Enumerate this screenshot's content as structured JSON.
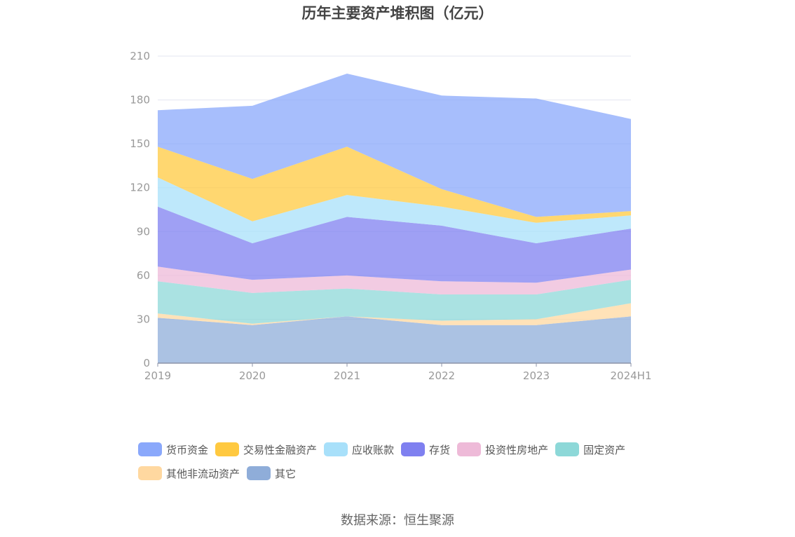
{
  "chart_data": {
    "type": "area",
    "stacked": true,
    "title": "历年主要资产堆积图（亿元）",
    "categories": [
      "2019",
      "2020",
      "2021",
      "2022",
      "2023",
      "2024H1"
    ],
    "y_ticks": [
      "0",
      "30",
      "60",
      "90",
      "120",
      "150",
      "180",
      "210"
    ],
    "ylim": [
      0,
      210
    ],
    "grid": true,
    "legend_position": "bottom",
    "series": [
      {
        "name": "其它",
        "color": "#8fadd9",
        "values": [
          31,
          26,
          32,
          26,
          26,
          32
        ]
      },
      {
        "name": "其他非流动资产",
        "color": "#ffd8a0",
        "values": [
          3,
          1,
          0,
          3,
          4,
          9
        ]
      },
      {
        "name": "固定资产",
        "color": "#8dd8d8",
        "values": [
          22,
          21,
          19,
          18,
          17,
          16
        ]
      },
      {
        "name": "投资性房地产",
        "color": "#eebad8",
        "values": [
          10,
          9,
          9,
          9,
          8,
          7
        ]
      },
      {
        "name": "存货",
        "color": "#7f80f0",
        "values": [
          41,
          25,
          40,
          38,
          27,
          28
        ]
      },
      {
        "name": "应收账款",
        "color": "#a8e0fa",
        "values": [
          20,
          15,
          15,
          13,
          14,
          9
        ]
      },
      {
        "name": "交易性金融资产",
        "color": "#ffc940",
        "values": [
          21,
          29,
          33,
          12,
          4,
          3
        ]
      },
      {
        "name": "货币资金",
        "color": "#8aa8fb",
        "values": [
          25,
          50,
          50,
          64,
          81,
          63
        ]
      }
    ]
  },
  "legend_order": [
    "货币资金",
    "交易性金融资产",
    "应收账款",
    "存货",
    "投资性房地产",
    "固定资产",
    "其他非流动资产",
    "其它"
  ],
  "source": "数据来源：恒生聚源"
}
